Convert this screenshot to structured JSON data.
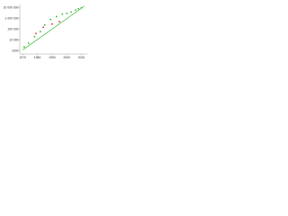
{
  "chart_data": {
    "type": "scatter",
    "log_y": true,
    "grid": false,
    "xlim": [
      1968,
      2014
    ],
    "xticks": [
      1970,
      1980,
      1990,
      2000,
      2010
    ],
    "ylim": [
      500,
      20000000
    ],
    "yticks": [
      1000,
      {
        "value": 10000,
        "label": "10 000"
      },
      {
        "value": 100000,
        "label": "100 000"
      },
      {
        "value": 1000000,
        "label": "1 000 000"
      },
      {
        "value": 10000000,
        "label": "10 000 000"
      }
    ],
    "trend": {
      "color": "#33bb33",
      "x": [
        1970,
        2012
      ],
      "values": [
        1200,
        14000000
      ]
    },
    "series": [
      {
        "color": "#33bb33",
        "x": [
          1971,
          1974,
          1978,
          1982,
          1985,
          1989,
          1993,
          1997,
          2000,
          2003,
          2006,
          2008,
          2010
        ],
        "values": [
          2300,
          5000,
          20000,
          60000,
          250000,
          800000,
          1500000,
          2500000,
          3000000,
          4000000,
          6000000,
          8000000,
          10000000
        ]
      },
      {
        "color": "#dd2222",
        "x": [
          1979,
          1984,
          1990,
          1995
        ],
        "values": [
          40000,
          150000,
          300000,
          500000
        ]
      }
    ]
  }
}
